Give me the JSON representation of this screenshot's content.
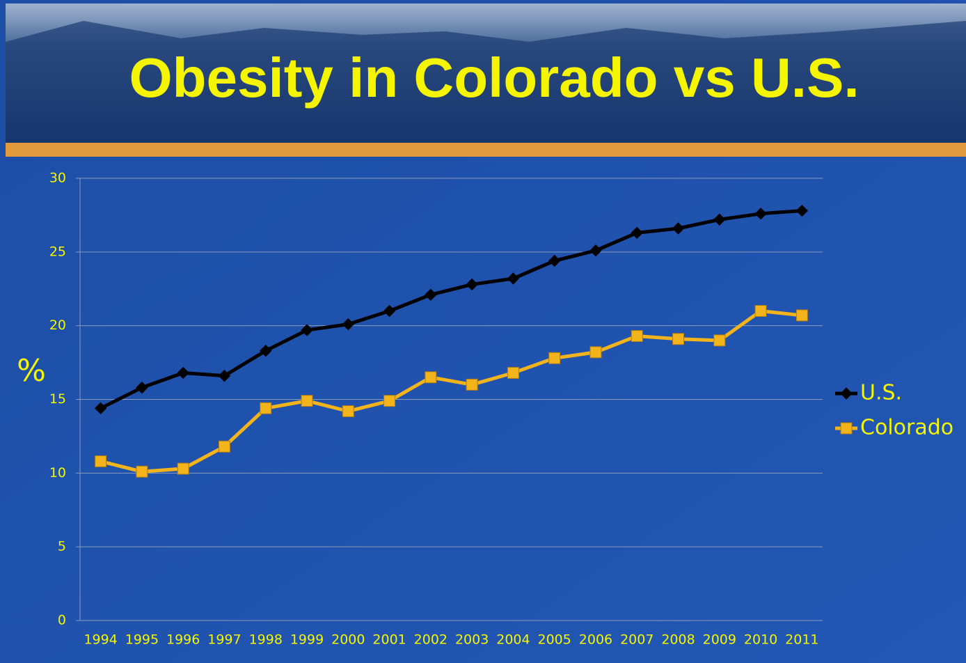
{
  "chart_data": {
    "type": "line",
    "title": "Obesity in Colorado vs U.S.",
    "y_label": "%",
    "categories": [
      "1994",
      "1995",
      "1996",
      "1997",
      "1998",
      "1999",
      "2000",
      "2001",
      "2002",
      "2003",
      "2004",
      "2005",
      "2006",
      "2007",
      "2008",
      "2009",
      "2010",
      "2011"
    ],
    "series": [
      {
        "name": "U.S.",
        "color": "#000000",
        "marker": "diamond",
        "values": [
          14.4,
          15.8,
          16.8,
          16.6,
          18.3,
          19.7,
          20.1,
          21.0,
          22.1,
          22.8,
          23.2,
          24.4,
          25.1,
          26.3,
          26.6,
          27.2,
          27.6,
          27.8
        ]
      },
      {
        "name": "Colorado",
        "color": "#f2b31b",
        "marker": "square",
        "values": [
          10.8,
          10.1,
          10.3,
          11.8,
          14.4,
          14.9,
          14.2,
          14.9,
          16.5,
          16.0,
          16.8,
          17.8,
          18.2,
          19.3,
          19.1,
          19.0,
          21.0,
          20.7
        ]
      }
    ],
    "ylim": [
      0,
      30
    ],
    "yticks": [
      0,
      5,
      10,
      15,
      20,
      25,
      30
    ],
    "grid": true,
    "legend": "right"
  }
}
